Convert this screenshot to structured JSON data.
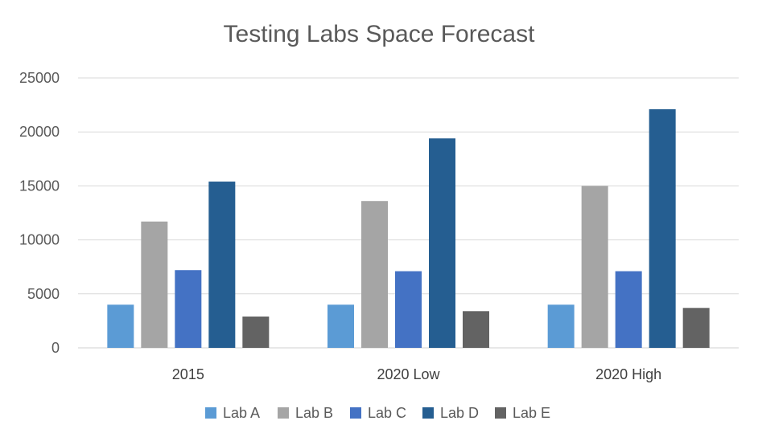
{
  "chart_data": {
    "type": "bar",
    "title": "Testing Labs Space Forecast",
    "xlabel": "",
    "ylabel": "",
    "categories": [
      "2015",
      "2020 Low",
      "2020 High"
    ],
    "ylim": [
      0,
      25000
    ],
    "yticks": [
      0,
      5000,
      10000,
      15000,
      20000,
      25000
    ],
    "grid": true,
    "legend_position": "bottom",
    "series": [
      {
        "name": "Lab A",
        "color": "#5b9bd5",
        "values": [
          4000,
          4000,
          4000
        ]
      },
      {
        "name": "Lab B",
        "color": "#a5a5a5",
        "values": [
          11700,
          13600,
          15000
        ]
      },
      {
        "name": "Lab C",
        "color": "#4472c4",
        "values": [
          7200,
          7100,
          7100
        ]
      },
      {
        "name": "Lab D",
        "color": "#255e91",
        "values": [
          15400,
          19400,
          22100
        ]
      },
      {
        "name": "Lab E",
        "color": "#636363",
        "values": [
          2900,
          3400,
          3700
        ]
      }
    ]
  }
}
